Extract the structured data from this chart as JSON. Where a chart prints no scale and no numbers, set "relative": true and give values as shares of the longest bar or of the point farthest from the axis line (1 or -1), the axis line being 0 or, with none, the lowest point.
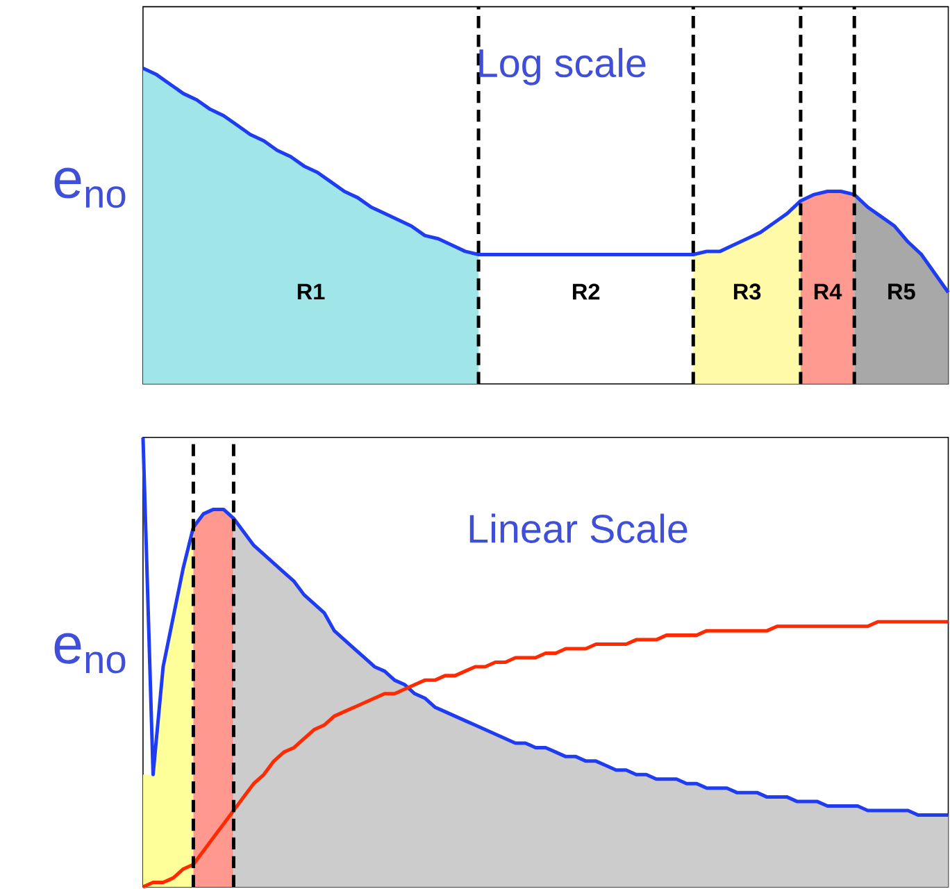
{
  "chart_data": [
    {
      "type": "area",
      "title": "Log scale",
      "ylabel": "e$_{no}$",
      "relative": true,
      "tick_labels": false,
      "grid": "x",
      "categories": [
        null,
        null,
        null,
        null,
        null,
        null,
        null,
        null,
        null,
        null,
        null,
        null,
        null,
        null,
        null,
        null,
        null,
        null,
        null,
        null,
        null,
        null,
        null,
        null,
        null,
        null,
        null,
        null,
        null,
        null,
        null,
        null,
        null,
        null,
        null,
        null,
        null,
        null,
        null,
        null,
        null,
        null,
        null,
        null,
        null,
        null,
        null,
        null,
        null,
        null,
        null,
        null,
        null,
        null,
        null,
        null,
        null,
        null,
        null,
        null,
        null
      ],
      "series": [
        {
          "color": "#a0e6e8",
          "values": [
            1.0,
            0.98,
            0.95,
            0.92,
            0.9,
            0.87,
            0.85,
            0.82,
            0.79,
            0.77,
            0.74,
            0.72,
            0.69,
            0.67,
            0.64,
            0.61,
            0.59,
            0.56,
            0.54,
            0.52,
            0.5,
            0.47,
            0.46,
            0.44,
            0.42,
            0.41,
            null,
            null,
            null,
            null,
            null,
            null,
            null,
            null,
            null,
            null,
            null,
            null,
            null,
            null,
            null,
            null,
            null,
            null,
            null,
            null,
            null,
            null,
            null,
            null,
            null,
            null,
            null,
            null,
            null,
            null,
            null,
            null,
            null,
            null,
            null
          ]
        },
        {
          "color": "#fffaa8",
          "values": [
            null,
            null,
            null,
            null,
            null,
            null,
            null,
            null,
            null,
            null,
            null,
            null,
            null,
            null,
            null,
            null,
            null,
            null,
            null,
            null,
            null,
            null,
            null,
            null,
            null,
            null,
            null,
            null,
            null,
            null,
            null,
            null,
            null,
            null,
            null,
            null,
            null,
            null,
            null,
            null,
            null,
            0.41,
            0.42,
            0.42,
            0.44,
            0.46,
            0.48,
            0.51,
            0.54,
            0.58,
            null,
            null,
            null,
            null,
            null,
            null,
            null,
            null,
            null,
            null,
            null
          ]
        },
        {
          "color": "#ff9a90",
          "values": [
            null,
            null,
            null,
            null,
            null,
            null,
            null,
            null,
            null,
            null,
            null,
            null,
            null,
            null,
            null,
            null,
            null,
            null,
            null,
            null,
            null,
            null,
            null,
            null,
            null,
            null,
            null,
            null,
            null,
            null,
            null,
            null,
            null,
            null,
            null,
            null,
            null,
            null,
            null,
            null,
            null,
            null,
            null,
            null,
            null,
            null,
            null,
            null,
            null,
            0.58,
            0.6,
            0.61,
            0.61,
            0.6,
            null,
            null,
            null,
            null,
            null,
            null,
            null
          ]
        },
        {
          "color": "#a8a8a8",
          "values": [
            null,
            null,
            null,
            null,
            null,
            null,
            null,
            null,
            null,
            null,
            null,
            null,
            null,
            null,
            null,
            null,
            null,
            null,
            null,
            null,
            null,
            null,
            null,
            null,
            null,
            null,
            null,
            null,
            null,
            null,
            null,
            null,
            null,
            null,
            null,
            null,
            null,
            null,
            null,
            null,
            null,
            null,
            null,
            null,
            null,
            null,
            null,
            null,
            null,
            null,
            null,
            null,
            null,
            0.6,
            0.56,
            0.53,
            0.5,
            0.45,
            0.41,
            0.35,
            0.29
          ]
        },
        {
          "type": "line",
          "color": "#1f3cf0",
          "values": [
            1.0,
            0.98,
            0.95,
            0.92,
            0.9,
            0.87,
            0.85,
            0.82,
            0.79,
            0.77,
            0.74,
            0.72,
            0.69,
            0.67,
            0.64,
            0.61,
            0.59,
            0.56,
            0.54,
            0.52,
            0.5,
            0.47,
            0.46,
            0.44,
            0.42,
            0.41,
            0.41,
            0.41,
            0.41,
            0.41,
            0.41,
            0.41,
            0.41,
            0.41,
            0.41,
            0.41,
            0.41,
            0.41,
            0.41,
            0.41,
            0.41,
            0.41,
            0.42,
            0.42,
            0.44,
            0.46,
            0.48,
            0.51,
            0.54,
            0.58,
            0.6,
            0.61,
            0.61,
            0.6,
            0.56,
            0.53,
            0.5,
            0.45,
            0.41,
            0.35,
            0.29
          ]
        }
      ],
      "annotations": [
        "R1",
        "R2",
        "R3",
        "R4",
        "R5"
      ]
    },
    {
      "type": "area",
      "title": "Linear Scale",
      "ylabel": "e$_{no}$",
      "relative": true,
      "tick_labels": false,
      "grid": "x",
      "categories": [
        null,
        null,
        null,
        null,
        null,
        null,
        null,
        null,
        null,
        null,
        null,
        null,
        null,
        null,
        null,
        null,
        null,
        null,
        null,
        null,
        null,
        null,
        null,
        null,
        null,
        null,
        null,
        null,
        null,
        null,
        null,
        null,
        null,
        null,
        null,
        null,
        null,
        null,
        null,
        null,
        null,
        null,
        null,
        null,
        null,
        null,
        null,
        null,
        null,
        null,
        null,
        null,
        null,
        null,
        null,
        null,
        null,
        null,
        null,
        null,
        null,
        null,
        null,
        null,
        null,
        null,
        null,
        null,
        null,
        null,
        null,
        null,
        null,
        null,
        null,
        null,
        null,
        null,
        null,
        null,
        null
      ],
      "series": [
        {
          "color": "#ffff99",
          "values": [
            0.25,
            0.25,
            0.49,
            0.6,
            0.71,
            0.8,
            null,
            null,
            null,
            null,
            null,
            null,
            null,
            null,
            null,
            null,
            null,
            null,
            null,
            null,
            null,
            null,
            null,
            null,
            null,
            null,
            null,
            null,
            null,
            null,
            null,
            null,
            null,
            null,
            null,
            null,
            null,
            null,
            null,
            null,
            null,
            null,
            null,
            null,
            null,
            null,
            null,
            null,
            null,
            null,
            null,
            null,
            null,
            null,
            null,
            null,
            null,
            null,
            null,
            null,
            null,
            null,
            null,
            null,
            null,
            null,
            null,
            null,
            null,
            null,
            null,
            null,
            null,
            null,
            null,
            null,
            null,
            null,
            null,
            null,
            null
          ]
        },
        {
          "color": "#ff9990",
          "values": [
            null,
            null,
            null,
            null,
            null,
            0.8,
            0.83,
            0.84,
            0.84,
            0.82,
            null,
            null,
            null,
            null,
            null,
            null,
            null,
            null,
            null,
            null,
            null,
            null,
            null,
            null,
            null,
            null,
            null,
            null,
            null,
            null,
            null,
            null,
            null,
            null,
            null,
            null,
            null,
            null,
            null,
            null,
            null,
            null,
            null,
            null,
            null,
            null,
            null,
            null,
            null,
            null,
            null,
            null,
            null,
            null,
            null,
            null,
            null,
            null,
            null,
            null,
            null,
            null,
            null,
            null,
            null,
            null,
            null,
            null,
            null,
            null,
            null,
            null,
            null,
            null,
            null,
            null,
            null,
            null,
            null,
            null,
            null
          ]
        },
        {
          "color": "#cccccc",
          "values": [
            null,
            null,
            null,
            null,
            null,
            null,
            null,
            null,
            null,
            0.82,
            0.79,
            0.76,
            0.74,
            0.72,
            0.7,
            0.68,
            0.65,
            0.63,
            0.61,
            0.57,
            0.55,
            0.53,
            0.51,
            0.49,
            0.48,
            0.46,
            0.45,
            0.43,
            0.42,
            0.4,
            0.39,
            0.38,
            0.37,
            0.36,
            0.35,
            0.34,
            0.33,
            0.32,
            0.32,
            0.31,
            0.31,
            0.3,
            0.29,
            0.29,
            0.28,
            0.28,
            0.27,
            0.26,
            0.26,
            0.25,
            0.25,
            0.24,
            0.24,
            0.24,
            0.23,
            0.23,
            0.22,
            0.22,
            0.22,
            0.21,
            0.21,
            0.21,
            0.2,
            0.2,
            0.2,
            0.19,
            0.19,
            0.19,
            0.18,
            0.18,
            0.18,
            0.18,
            0.17,
            0.17,
            0.17,
            0.17,
            0.17,
            0.16,
            0.16,
            0.16,
            0.16
          ]
        },
        {
          "type": "line",
          "color": "#1f3cf0",
          "values": [
            1.0,
            0.25,
            0.49,
            0.6,
            0.71,
            0.8,
            0.83,
            0.84,
            0.84,
            0.82,
            0.79,
            0.76,
            0.74,
            0.72,
            0.7,
            0.68,
            0.65,
            0.63,
            0.61,
            0.57,
            0.55,
            0.53,
            0.51,
            0.49,
            0.48,
            0.46,
            0.45,
            0.43,
            0.42,
            0.4,
            0.39,
            0.38,
            0.37,
            0.36,
            0.35,
            0.34,
            0.33,
            0.32,
            0.32,
            0.31,
            0.31,
            0.3,
            0.29,
            0.29,
            0.28,
            0.28,
            0.27,
            0.26,
            0.26,
            0.25,
            0.25,
            0.24,
            0.24,
            0.24,
            0.23,
            0.23,
            0.22,
            0.22,
            0.22,
            0.21,
            0.21,
            0.21,
            0.2,
            0.2,
            0.2,
            0.19,
            0.19,
            0.19,
            0.18,
            0.18,
            0.18,
            0.18,
            0.17,
            0.17,
            0.17,
            0.17,
            0.17,
            0.16,
            0.16,
            0.16,
            0.16
          ]
        },
        {
          "type": "line",
          "color": "#ff2a00",
          "values": [
            0.0,
            0.01,
            0.01,
            0.02,
            0.04,
            0.05,
            0.08,
            0.11,
            0.14,
            0.17,
            0.2,
            0.23,
            0.25,
            0.28,
            0.3,
            0.31,
            0.33,
            0.35,
            0.36,
            0.38,
            0.39,
            0.4,
            0.41,
            0.42,
            0.43,
            0.43,
            0.44,
            0.45,
            0.46,
            0.46,
            0.47,
            0.47,
            0.48,
            0.49,
            0.49,
            0.5,
            0.5,
            0.51,
            0.51,
            0.51,
            0.52,
            0.52,
            0.53,
            0.53,
            0.53,
            0.54,
            0.54,
            0.54,
            0.54,
            0.55,
            0.55,
            0.55,
            0.56,
            0.56,
            0.56,
            0.56,
            0.57,
            0.57,
            0.57,
            0.57,
            0.57,
            0.57,
            0.57,
            0.58,
            0.58,
            0.58,
            0.58,
            0.58,
            0.58,
            0.58,
            0.58,
            0.58,
            0.58,
            0.59,
            0.59,
            0.59,
            0.59,
            0.59,
            0.59,
            0.59,
            0.59
          ]
        }
      ]
    }
  ]
}
